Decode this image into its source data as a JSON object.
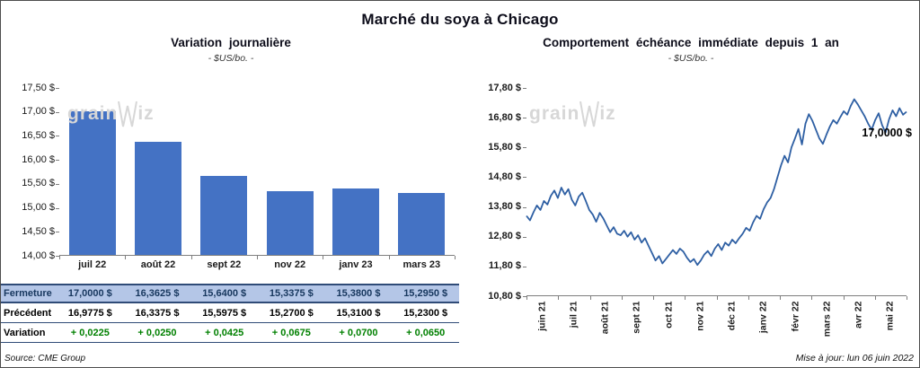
{
  "page": {
    "title": "Marché du soya à Chicago",
    "source": "Source: CME Group",
    "updated": "Mise à jour: lun 06 juin 2022",
    "watermark_prefix": "grain",
    "watermark_suffix": "iz"
  },
  "chart_data": [
    {
      "type": "bar",
      "title": "Variation journalière",
      "subtitle": "- $US/bo. -",
      "categories": [
        "juil 22",
        "août 22",
        "sept 22",
        "nov 22",
        "janv 23",
        "mars 23"
      ],
      "values": [
        17.0,
        16.3625,
        15.64,
        15.3375,
        15.38,
        15.295
      ],
      "ylim": [
        14.0,
        17.5
      ],
      "ytick_step": 0.5,
      "ytick_labels": [
        "14,00 $",
        "14,50 $",
        "15,00 $",
        "15,50 $",
        "16,00 $",
        "16,50 $",
        "17,00 $",
        "17,50 $"
      ],
      "bar_color": "#4472C4",
      "grid": false,
      "xlabel": "",
      "ylabel": "$US/bo."
    },
    {
      "type": "line",
      "title": "Comportement échéance immédiate depuis 1 an",
      "subtitle": "- $US/bo. -",
      "x_labels": [
        "juin 21",
        "juil 21",
        "août 21",
        "sept 21",
        "oct 21",
        "nov 21",
        "déc 21",
        "janv 22",
        "févr 22",
        "mars 22",
        "avr 22",
        "mai 22"
      ],
      "ylim": [
        10.8,
        17.8
      ],
      "ytick_labels": [
        "10,80 $",
        "11,80 $",
        "12,80 $",
        "13,80 $",
        "14,80 $",
        "15,80 $",
        "16,80 $",
        "17,80 $"
      ],
      "annotation": "17,0000 $",
      "last_value": 17.0,
      "line_color": "#2E5FA3",
      "grid": false,
      "xlabel": "",
      "ylabel": "$US/bo.",
      "values": [
        13.5,
        13.35,
        13.62,
        13.85,
        13.7,
        14.0,
        13.88,
        14.18,
        14.35,
        14.1,
        14.45,
        14.22,
        14.4,
        14.05,
        13.85,
        14.15,
        14.28,
        14.0,
        13.7,
        13.55,
        13.3,
        13.6,
        13.42,
        13.18,
        12.95,
        13.12,
        12.9,
        12.85,
        13.0,
        12.8,
        12.95,
        12.7,
        12.85,
        12.6,
        12.75,
        12.5,
        12.25,
        12.0,
        12.15,
        11.9,
        12.05,
        12.2,
        12.35,
        12.22,
        12.4,
        12.3,
        12.1,
        11.95,
        12.05,
        11.85,
        12.0,
        12.2,
        12.32,
        12.15,
        12.4,
        12.55,
        12.35,
        12.6,
        12.5,
        12.7,
        12.58,
        12.75,
        12.9,
        13.1,
        13.0,
        13.28,
        13.5,
        13.4,
        13.72,
        13.95,
        14.1,
        14.4,
        14.8,
        15.2,
        15.52,
        15.3,
        15.8,
        16.1,
        16.42,
        15.9,
        16.6,
        16.92,
        16.7,
        16.4,
        16.1,
        15.92,
        16.22,
        16.5,
        16.72,
        16.6,
        16.82,
        17.02,
        16.9,
        17.2,
        17.42,
        17.25,
        17.05,
        16.85,
        16.6,
        16.4,
        16.72,
        16.95,
        16.55,
        16.3,
        16.75,
        17.05,
        16.85,
        17.12,
        16.9,
        17.0
      ]
    }
  ],
  "table": {
    "rows": [
      {
        "label": "Fermeture",
        "values": [
          "17,0000 $",
          "16,3625 $",
          "15,6400 $",
          "15,3375 $",
          "15,3800 $",
          "15,2950 $"
        ]
      },
      {
        "label": "Précédent",
        "values": [
          "16,9775 $",
          "16,3375 $",
          "15,5975 $",
          "15,2700 $",
          "15,3100 $",
          "15,2300 $"
        ]
      },
      {
        "label": "Variation",
        "values": [
          "+ 0,0225",
          "+ 0,0250",
          "+ 0,0425",
          "+ 0,0675",
          "+ 0,0700",
          "+ 0,0650"
        ]
      }
    ]
  }
}
